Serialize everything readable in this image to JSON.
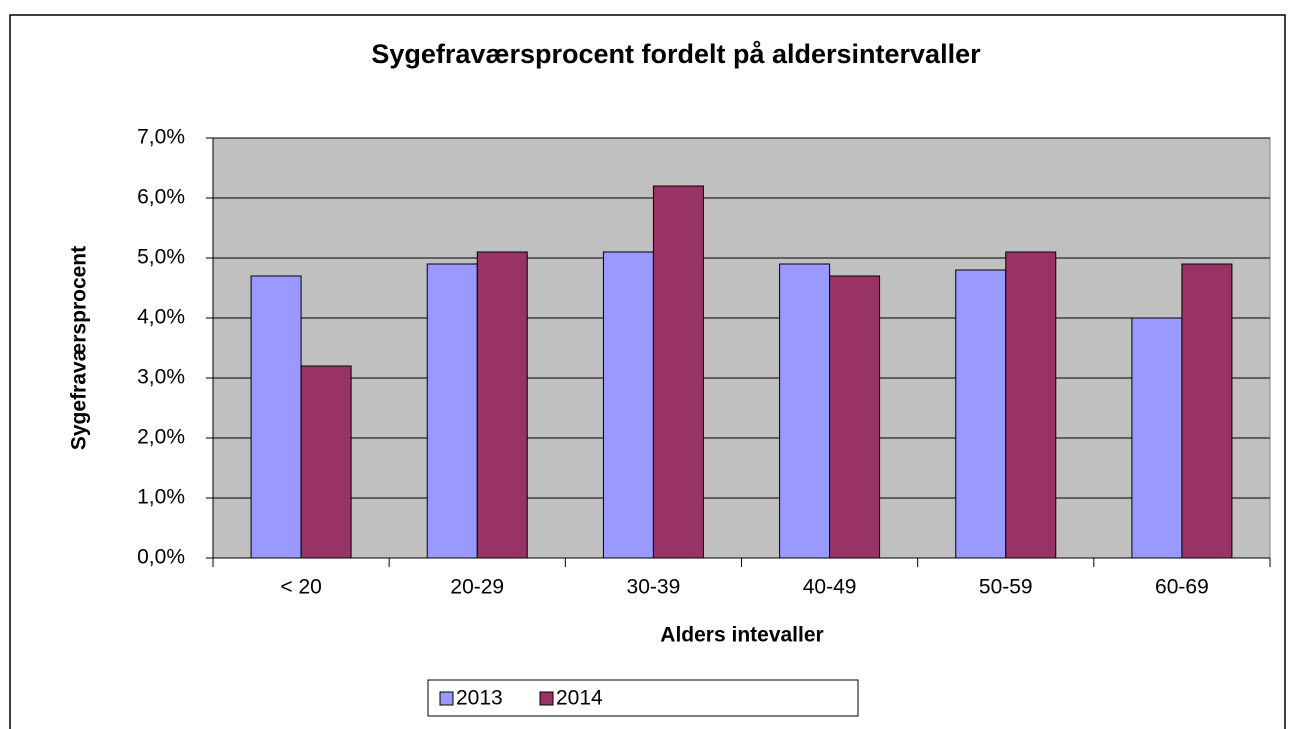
{
  "chart_data": {
    "type": "bar",
    "title": "Sygefraværsprocent fordelt på aldersintervaller",
    "x_label": "Alders intevaller",
    "y_label": "Sygefraværsprocent",
    "categories": [
      "< 20",
      "20-29",
      "30-39",
      "40-49",
      "50-59",
      "60-69"
    ],
    "series": [
      {
        "name": "2013",
        "color": "#9999ff",
        "values": [
          4.7,
          4.9,
          5.1,
          4.9,
          4.8,
          4.0
        ]
      },
      {
        "name": "2014",
        "color": "#993366",
        "values": [
          3.2,
          5.1,
          6.2,
          4.7,
          5.1,
          4.9
        ]
      }
    ],
    "ylim": [
      0,
      7
    ],
    "yticks": [
      {
        "value": 0,
        "label": "0,0%"
      },
      {
        "value": 1,
        "label": "1,0%"
      },
      {
        "value": 2,
        "label": "2,0%"
      },
      {
        "value": 3,
        "label": "3,0%"
      },
      {
        "value": 4,
        "label": "4,0%"
      },
      {
        "value": 5,
        "label": "5,0%"
      },
      {
        "value": 6,
        "label": "6,0%"
      },
      {
        "value": 7,
        "label": "7,0%"
      }
    ],
    "grid": true,
    "plot_background": "#c0c0c0",
    "legend": "bottom"
  }
}
